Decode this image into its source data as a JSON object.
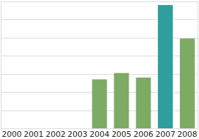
{
  "chart_data": {
    "type": "bar",
    "categories": [
      "2000",
      "2001",
      "2002",
      "2003",
      "2004",
      "2005",
      "2006",
      "2007",
      "2008"
    ],
    "values": [
      null,
      null,
      null,
      null,
      2.7,
      3.05,
      2.8,
      6.8,
      4.95
    ],
    "colors": [
      "#7dab63",
      "#7dab63",
      "#7dab63",
      "#7dab63",
      "#7dab63",
      "#7dab63",
      "#7dab63",
      "#2f9e9c",
      "#7dab63"
    ],
    "ylim": [
      0,
      7
    ],
    "yticks": [
      0,
      1,
      2,
      3,
      4,
      5,
      6,
      7
    ],
    "grid": true,
    "tick_labels": "x"
  }
}
